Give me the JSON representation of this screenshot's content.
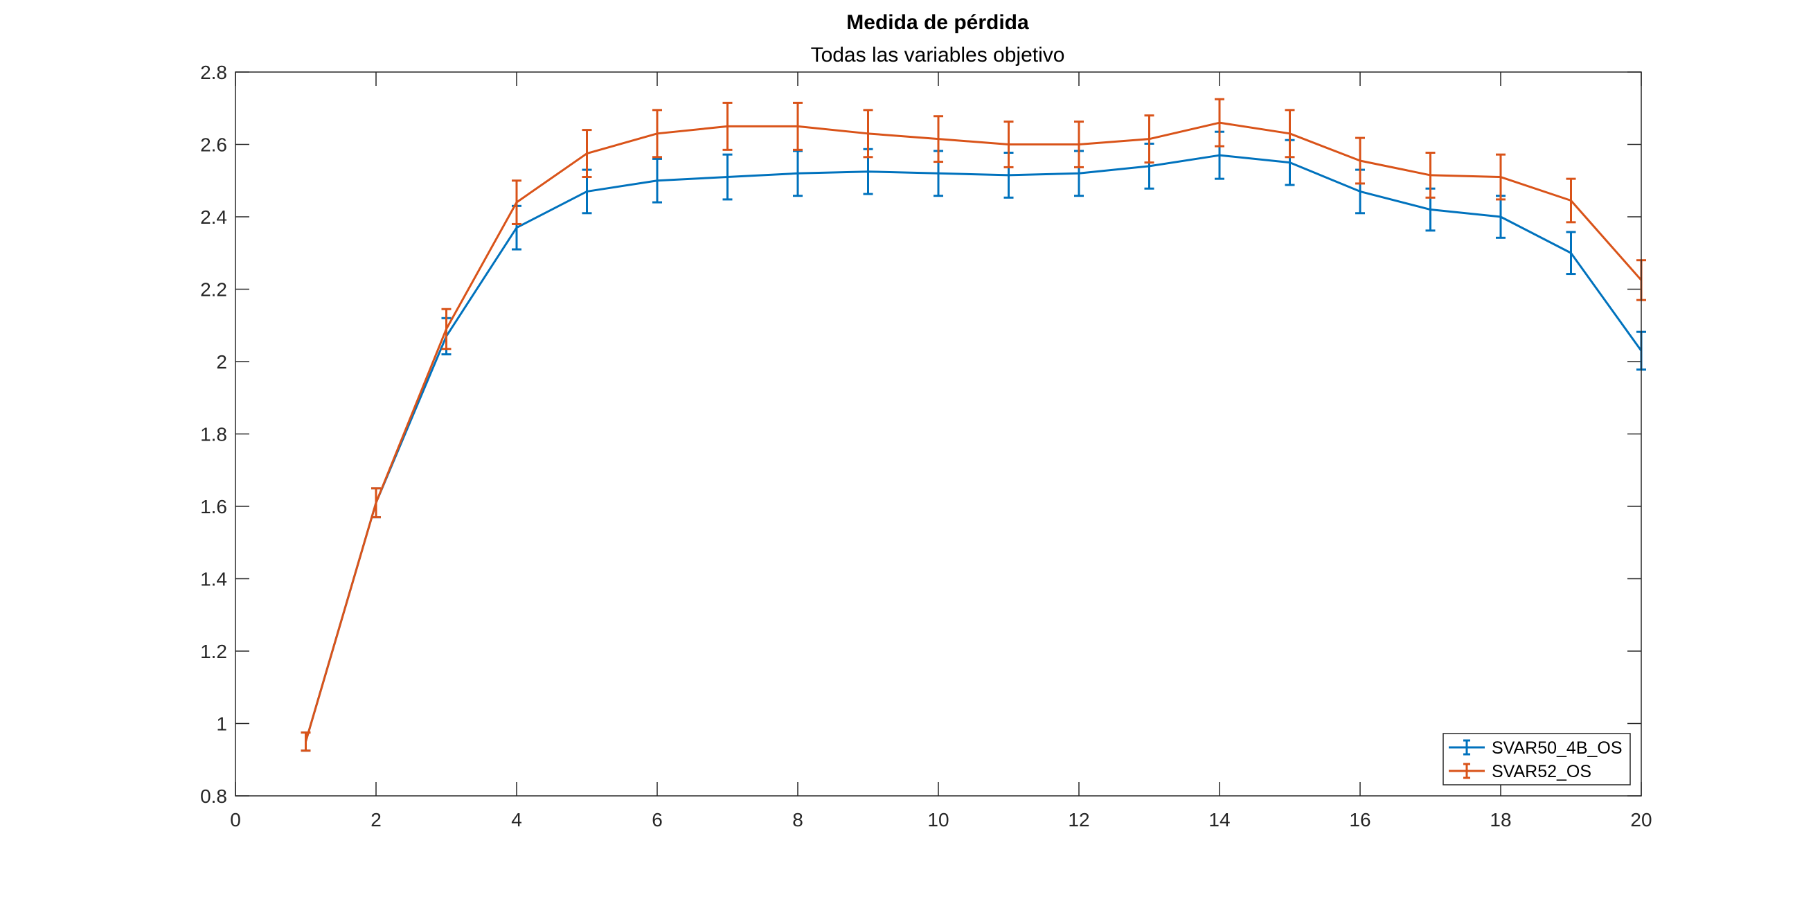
{
  "chart_data": {
    "type": "line",
    "title": "Medida de pérdida",
    "subtitle": "Todas las variables objetivo",
    "xlabel": "",
    "ylabel": "",
    "xlim": [
      0,
      20
    ],
    "ylim": [
      0.8,
      2.8
    ],
    "x_ticks": [
      0,
      2,
      4,
      6,
      8,
      10,
      12,
      14,
      16,
      18,
      20
    ],
    "y_ticks": [
      0.8,
      1,
      1.2,
      1.4,
      1.6,
      1.8,
      2,
      2.2,
      2.4,
      2.6,
      2.8
    ],
    "x_tick_labels": [
      "0",
      "2",
      "4",
      "6",
      "8",
      "10",
      "12",
      "14",
      "16",
      "18",
      "20"
    ],
    "y_tick_labels": [
      "0.8",
      "1",
      "1.2",
      "1.4",
      "1.6",
      "1.8",
      "2",
      "2.2",
      "2.4",
      "2.6",
      "2.8"
    ],
    "grid": false,
    "legend_position": "bottom-right",
    "x": [
      1,
      2,
      3,
      4,
      5,
      6,
      7,
      8,
      9,
      10,
      11,
      12,
      13,
      14,
      15,
      16,
      17,
      18,
      19,
      20
    ],
    "series": [
      {
        "name": "SVAR50_4B_OS",
        "color": "#0072BD",
        "values": [
          0.95,
          1.61,
          2.07,
          2.37,
          2.47,
          2.5,
          2.51,
          2.52,
          2.525,
          2.52,
          2.515,
          2.52,
          2.54,
          2.57,
          2.55,
          2.47,
          2.42,
          2.4,
          2.3,
          2.03
        ],
        "error": [
          0.025,
          0.04,
          0.05,
          0.06,
          0.06,
          0.06,
          0.062,
          0.062,
          0.062,
          0.062,
          0.062,
          0.062,
          0.062,
          0.065,
          0.062,
          0.06,
          0.058,
          0.058,
          0.058,
          0.052
        ]
      },
      {
        "name": "SVAR52_OS",
        "color": "#D95319",
        "values": [
          0.95,
          1.61,
          2.09,
          2.44,
          2.575,
          2.63,
          2.65,
          2.65,
          2.63,
          2.615,
          2.6,
          2.6,
          2.615,
          2.66,
          2.63,
          2.555,
          2.515,
          2.51,
          2.445,
          2.225
        ],
        "error": [
          0.025,
          0.04,
          0.055,
          0.06,
          0.065,
          0.065,
          0.065,
          0.065,
          0.065,
          0.063,
          0.063,
          0.063,
          0.065,
          0.065,
          0.065,
          0.063,
          0.062,
          0.062,
          0.06,
          0.055
        ]
      }
    ]
  }
}
